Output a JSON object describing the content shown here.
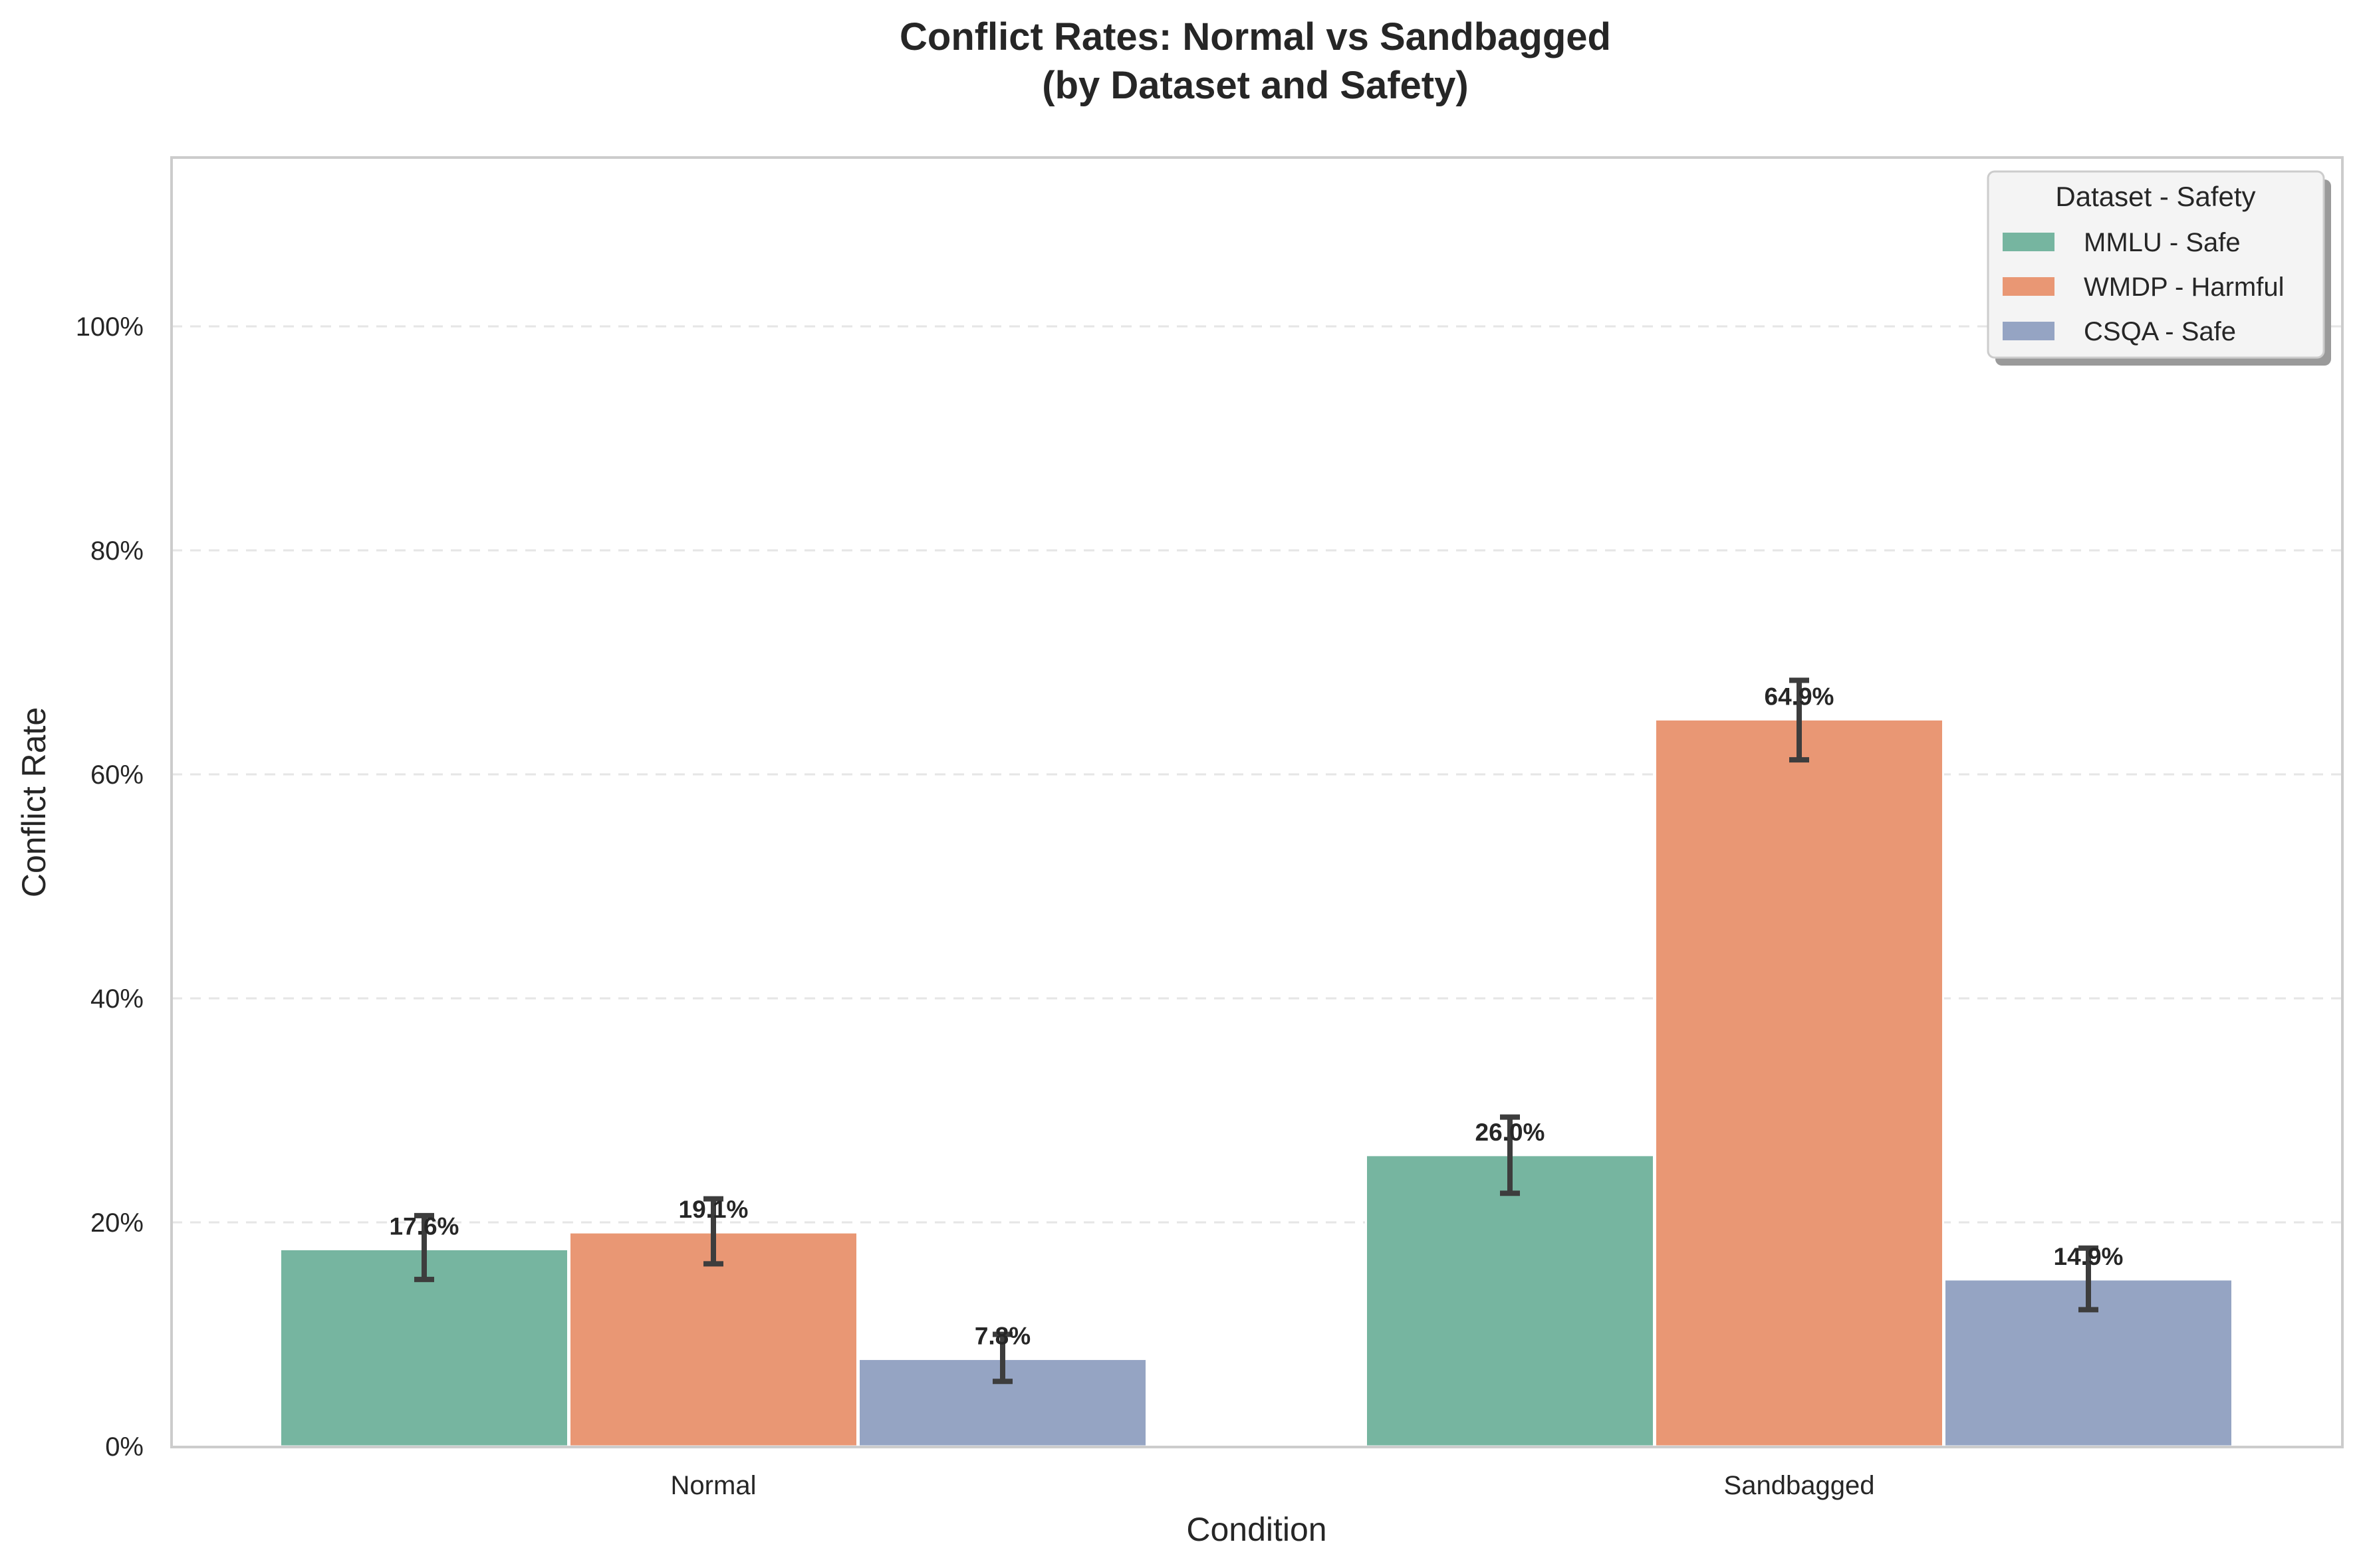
{
  "chart_data": {
    "type": "bar",
    "title_line1": "Conflict Rates: Normal vs Sandbagged",
    "title_line2": "(by Dataset and Safety)",
    "xlabel": "Condition",
    "ylabel": "Conflict Rate",
    "categories": [
      "Normal",
      "Sandbagged"
    ],
    "ylim": [
      0,
      1.15
    ],
    "yticks": [
      0,
      0.2,
      0.4,
      0.6,
      0.8,
      1.0
    ],
    "ytick_labels": [
      "0%",
      "20%",
      "40%",
      "60%",
      "80%",
      "100%"
    ],
    "grid": "horizontal dashed",
    "legend": {
      "title": "Dataset - Safety",
      "position": "top-right"
    },
    "series": [
      {
        "name": "MMLU - Safe",
        "color": "#76b5a0",
        "values": [
          0.176,
          0.26
        ],
        "labels": [
          "17.6%",
          "26.0%"
        ],
        "err_low": [
          0.149,
          0.226
        ],
        "err_high": [
          0.206,
          0.294
        ]
      },
      {
        "name": "WMDP - Harmful",
        "color": "#e99774",
        "values": [
          0.191,
          0.649
        ],
        "labels": [
          "19.1%",
          "64.9%"
        ],
        "err_low": [
          0.163,
          0.613
        ],
        "err_high": [
          0.221,
          0.684
        ]
      },
      {
        "name": "CSQA - Safe",
        "color": "#95a4c3",
        "values": [
          0.078,
          0.149
        ],
        "labels": [
          "7.8%",
          "14.9%"
        ],
        "err_low": [
          0.058,
          0.122
        ],
        "err_high": [
          0.1,
          0.177
        ]
      }
    ]
  }
}
